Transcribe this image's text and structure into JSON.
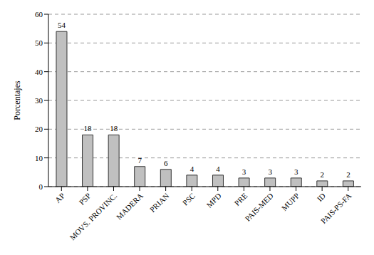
{
  "chart_data": {
    "type": "bar",
    "y_label": "Porcentajes",
    "categories": [
      "AP",
      "PSP",
      "MOVS. PROVINC.",
      "MADERA",
      "PRIAN",
      "PSC",
      "MPD",
      "PRE",
      "PAIS-MED",
      "MUPP",
      "ID",
      "PAIS-PS-FA"
    ],
    "values": [
      54,
      18,
      18,
      7,
      6,
      4,
      4,
      3,
      3,
      3,
      2,
      2
    ],
    "color": "#c0c0c0",
    "ylim": [
      0,
      60
    ],
    "yticks": [
      0,
      10,
      20,
      30,
      40,
      50,
      60
    ],
    "grid": true,
    "data_labels": true
  }
}
